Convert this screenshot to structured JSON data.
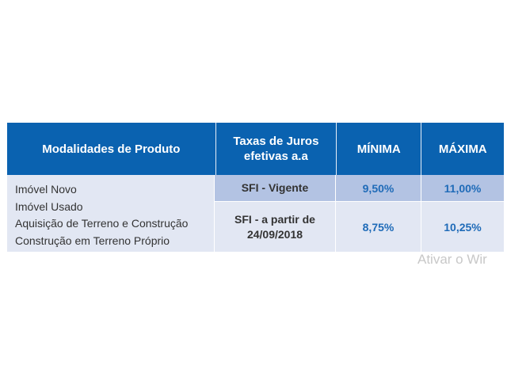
{
  "table": {
    "headers": [
      "Modalidades de Produto",
      "Taxas de Juros efetivas a.a",
      "MÍNIMA",
      "MÁXIMA"
    ],
    "header_taxas_line1": "Taxas de Juros",
    "header_taxas_line2": "efetivas a.a",
    "modalidades": [
      "Imóvel Novo",
      "Imóvel Usado",
      "Aquisição de Terreno e Construção",
      "Construção em Terreno Próprio"
    ],
    "rows": [
      {
        "produto": "SFI - Vigente",
        "minima": "9,50%",
        "maxima": "11,00%"
      },
      {
        "produto_line1": "SFI - a partir de",
        "produto_line2": "24/09/2018",
        "minima": "8,75%",
        "maxima": "10,25%"
      }
    ]
  },
  "watermark": "Ativar o Wir",
  "colors": {
    "header": "#0a62b0",
    "body": "#e2e7f3",
    "highlight": "#b3c3e3",
    "rate": "#1f6bb8"
  }
}
